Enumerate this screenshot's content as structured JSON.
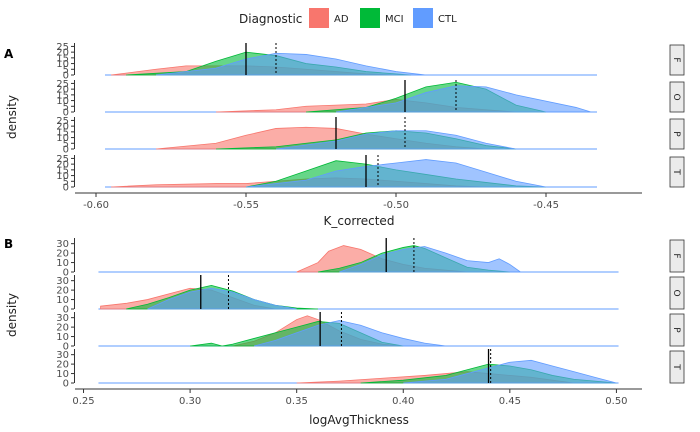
{
  "legend": {
    "title": "Diagnostic",
    "items": [
      {
        "label": "AD",
        "color": "#F8766D"
      },
      {
        "label": "MCI",
        "color": "#00BA38"
      },
      {
        "label": "CTL",
        "color": "#619CFF"
      }
    ]
  },
  "ridge_color": "#619CFF",
  "chart_data": [
    {
      "type": "density",
      "tag": "A",
      "xlabel": "K_corrected",
      "ylabel": "density",
      "xlim": [
        -0.607,
        -0.418
      ],
      "ymax": 28,
      "xticks": [
        -0.6,
        -0.55,
        -0.5,
        -0.45
      ],
      "xticklabels": [
        "-0.60",
        "-0.55",
        "-0.50",
        "-0.45"
      ],
      "yticks": [
        0,
        5,
        10,
        15,
        20,
        25
      ],
      "yticklabels": [
        "0",
        "5",
        "10",
        "15",
        "20",
        "25"
      ],
      "facets": [
        {
          "strip": "F",
          "range": [
            -0.597,
            -0.433
          ],
          "solid_line": -0.55,
          "dashed_line": -0.54,
          "series": [
            {
              "name": "AD",
              "x": [
                -0.595,
                -0.58,
                -0.57,
                -0.56,
                -0.55,
                -0.54,
                -0.53,
                -0.52,
                -0.51,
                -0.5
              ],
              "y": [
                0,
                5,
                8,
                8,
                8,
                7,
                5,
                3,
                1,
                0
              ]
            },
            {
              "name": "MCI",
              "x": [
                -0.59,
                -0.57,
                -0.56,
                -0.55,
                -0.54,
                -0.53,
                -0.52,
                -0.51,
                -0.5,
                -0.495
              ],
              "y": [
                0,
                3,
                12,
                20,
                17,
                10,
                7,
                3,
                1,
                0
              ]
            },
            {
              "name": "CTL",
              "x": [
                -0.58,
                -0.56,
                -0.55,
                -0.54,
                -0.53,
                -0.52,
                -0.51,
                -0.5,
                -0.49
              ],
              "y": [
                0,
                6,
                14,
                19,
                18,
                14,
                8,
                3,
                0
              ]
            }
          ]
        },
        {
          "strip": "O",
          "range": [
            -0.597,
            -0.433
          ],
          "solid_line": -0.497,
          "dashed_line": -0.48,
          "series": [
            {
              "name": "AD",
              "x": [
                -0.56,
                -0.54,
                -0.53,
                -0.52,
                -0.51,
                -0.5,
                -0.49,
                -0.48,
                -0.47,
                -0.46
              ],
              "y": [
                0,
                2,
                5,
                6,
                7,
                11,
                8,
                4,
                2,
                0
              ]
            },
            {
              "name": "MCI",
              "x": [
                -0.53,
                -0.51,
                -0.5,
                -0.49,
                -0.48,
                -0.47,
                -0.46,
                -0.45
              ],
              "y": [
                0,
                4,
                12,
                22,
                26,
                20,
                6,
                0
              ]
            },
            {
              "name": "CTL",
              "x": [
                -0.52,
                -0.5,
                -0.49,
                -0.48,
                -0.47,
                -0.46,
                -0.44,
                -0.435
              ],
              "y": [
                0,
                8,
                17,
                23,
                22,
                15,
                4,
                0
              ]
            }
          ]
        },
        {
          "strip": "P",
          "range": [
            -0.597,
            -0.433
          ],
          "solid_line": -0.52,
          "dashed_line": -0.497,
          "series": [
            {
              "name": "AD",
              "x": [
                -0.58,
                -0.56,
                -0.55,
                -0.54,
                -0.53,
                -0.52,
                -0.51,
                -0.5,
                -0.49,
                -0.48,
                -0.47
              ],
              "y": [
                0,
                5,
                12,
                18,
                19,
                18,
                13,
                9,
                5,
                2,
                0
              ]
            },
            {
              "name": "MCI",
              "x": [
                -0.56,
                -0.54,
                -0.53,
                -0.52,
                -0.51,
                -0.5,
                -0.49,
                -0.48,
                -0.47,
                -0.46
              ],
              "y": [
                0,
                2,
                5,
                8,
                14,
                16,
                14,
                9,
                3,
                0
              ]
            },
            {
              "name": "CTL",
              "x": [
                -0.54,
                -0.52,
                -0.51,
                -0.5,
                -0.49,
                -0.48,
                -0.47,
                -0.46
              ],
              "y": [
                0,
                7,
                13,
                16,
                16,
                12,
                5,
                0
              ]
            }
          ]
        },
        {
          "strip": "T",
          "range": [
            -0.597,
            -0.433
          ],
          "solid_line": -0.51,
          "dashed_line": -0.506,
          "series": [
            {
              "name": "AD",
              "x": [
                -0.595,
                -0.58,
                -0.56,
                -0.55,
                -0.54,
                -0.53,
                -0.52,
                -0.51,
                -0.5,
                -0.49,
                -0.48,
                -0.47
              ],
              "y": [
                0,
                2,
                3,
                3,
                5,
                7,
                8,
                7,
                5,
                3,
                1,
                0
              ]
            },
            {
              "name": "MCI",
              "x": [
                -0.55,
                -0.54,
                -0.53,
                -0.52,
                -0.51,
                -0.5,
                -0.49,
                -0.48,
                -0.47,
                -0.46,
                -0.45
              ],
              "y": [
                0,
                5,
                14,
                23,
                20,
                15,
                11,
                7,
                4,
                1,
                0
              ]
            },
            {
              "name": "CTL",
              "x": [
                -0.55,
                -0.53,
                -0.52,
                -0.51,
                -0.5,
                -0.49,
                -0.48,
                -0.47,
                -0.46,
                -0.45
              ],
              "y": [
                0,
                6,
                14,
                18,
                21,
                24,
                21,
                13,
                5,
                0
              ]
            }
          ]
        }
      ]
    },
    {
      "type": "density",
      "tag": "B",
      "xlabel": "logAvgThickness",
      "ylabel": "density",
      "xlim": [
        0.246,
        0.512
      ],
      "ymax": 36,
      "xticks": [
        0.25,
        0.3,
        0.35,
        0.4,
        0.45,
        0.5
      ],
      "xticklabels": [
        "0.25",
        "0.30",
        "0.35",
        "0.40",
        "0.45",
        "0.50"
      ],
      "yticks": [
        0,
        10,
        20,
        30
      ],
      "yticklabels": [
        "0",
        "10",
        "20",
        "30"
      ],
      "facets": [
        {
          "strip": "F",
          "range": [
            0.257,
            0.501
          ],
          "solid_line": 0.392,
          "dashed_line": 0.405,
          "series": [
            {
              "name": "AD",
              "x": [
                0.35,
                0.36,
                0.365,
                0.372,
                0.38,
                0.39,
                0.4,
                0.41,
                0.42,
                0.43
              ],
              "y": [
                0,
                10,
                22,
                28,
                24,
                14,
                8,
                4,
                2,
                0
              ]
            },
            {
              "name": "MCI",
              "x": [
                0.36,
                0.37,
                0.38,
                0.39,
                0.4,
                0.405,
                0.41,
                0.42,
                0.43,
                0.44,
                0.45
              ],
              "y": [
                0,
                4,
                10,
                20,
                26,
                28,
                25,
                15,
                5,
                2,
                0
              ]
            },
            {
              "name": "CTL",
              "x": [
                0.37,
                0.38,
                0.39,
                0.4,
                0.41,
                0.42,
                0.43,
                0.44,
                0.445,
                0.45,
                0.455
              ],
              "y": [
                0,
                8,
                18,
                24,
                27,
                20,
                12,
                10,
                14,
                8,
                0
              ]
            }
          ]
        },
        {
          "strip": "O",
          "range": [
            0.257,
            0.501
          ],
          "solid_line": 0.305,
          "dashed_line": 0.318,
          "series": [
            {
              "name": "AD",
              "x": [
                0.258,
                0.27,
                0.28,
                0.29,
                0.3,
                0.31,
                0.32,
                0.33,
                0.34
              ],
              "y": [
                3,
                6,
                10,
                16,
                22,
                20,
                12,
                4,
                0
              ]
            },
            {
              "name": "MCI",
              "x": [
                0.27,
                0.28,
                0.29,
                0.3,
                0.31,
                0.32,
                0.33,
                0.34,
                0.35,
                0.36
              ],
              "y": [
                0,
                5,
                12,
                20,
                25,
                19,
                10,
                4,
                1,
                0
              ]
            },
            {
              "name": "CTL",
              "x": [
                0.28,
                0.29,
                0.3,
                0.31,
                0.32,
                0.33,
                0.34,
                0.35
              ],
              "y": [
                0,
                10,
                18,
                22,
                18,
                10,
                4,
                0
              ]
            }
          ]
        },
        {
          "strip": "P",
          "range": [
            0.257,
            0.501
          ],
          "solid_line": 0.361,
          "dashed_line": 0.371,
          "series": [
            {
              "name": "AD",
              "x": [
                0.32,
                0.33,
                0.34,
                0.35,
                0.355,
                0.36,
                0.37,
                0.38,
                0.39,
                0.4
              ],
              "y": [
                0,
                5,
                14,
                28,
                32,
                28,
                16,
                7,
                2,
                0
              ]
            },
            {
              "name": "MCI",
              "x": [
                0.3,
                0.31,
                0.315,
                0.32,
                0.33,
                0.34,
                0.35,
                0.36,
                0.37,
                0.38,
                0.39,
                0.4
              ],
              "y": [
                0,
                3,
                0,
                2,
                8,
                14,
                20,
                26,
                24,
                14,
                4,
                0
              ]
            },
            {
              "name": "CTL",
              "x": [
                0.33,
                0.34,
                0.35,
                0.36,
                0.37,
                0.38,
                0.39,
                0.4,
                0.41,
                0.42
              ],
              "y": [
                0,
                6,
                14,
                22,
                27,
                22,
                14,
                8,
                3,
                0
              ]
            }
          ]
        },
        {
          "strip": "T",
          "range": [
            0.257,
            0.501
          ],
          "solid_line": 0.44,
          "dashed_line": 0.441,
          "series": [
            {
              "name": "AD",
              "x": [
                0.35,
                0.37,
                0.39,
                0.41,
                0.42,
                0.43,
                0.44,
                0.45,
                0.46,
                0.47,
                0.48
              ],
              "y": [
                0,
                2,
                5,
                8,
                10,
                12,
                10,
                8,
                6,
                3,
                0
              ]
            },
            {
              "name": "MCI",
              "x": [
                0.38,
                0.4,
                0.42,
                0.43,
                0.44,
                0.45,
                0.46,
                0.47,
                0.48,
                0.49,
                0.5
              ],
              "y": [
                0,
                3,
                8,
                14,
                20,
                18,
                14,
                8,
                4,
                2,
                0
              ]
            },
            {
              "name": "CTL",
              "x": [
                0.4,
                0.42,
                0.43,
                0.44,
                0.45,
                0.46,
                0.47,
                0.48,
                0.49,
                0.5
              ],
              "y": [
                0,
                4,
                10,
                16,
                22,
                24,
                18,
                12,
                6,
                0
              ]
            }
          ]
        }
      ]
    }
  ]
}
